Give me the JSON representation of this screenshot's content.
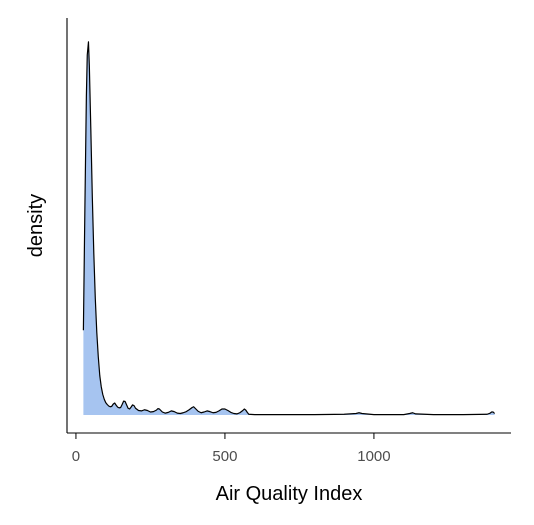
{
  "chart_data": {
    "type": "area",
    "title": "",
    "xlabel": "Air Quality Index",
    "ylabel": "density",
    "xlim": [
      -30,
      1460
    ],
    "ylim": [
      0,
      1
    ],
    "x_ticks": [
      0,
      500,
      1000
    ],
    "y_ticks_shown": false,
    "fill_color": "#a6c4f0",
    "line_color": "#000000",
    "grid": false,
    "legend": "none",
    "series": [
      {
        "x": [
          25,
          30,
          35,
          38,
          42,
          45,
          50,
          55,
          60,
          65,
          70,
          75,
          80,
          85,
          90,
          95,
          100,
          105,
          110,
          115,
          120,
          125,
          130,
          135,
          140,
          145,
          150,
          155,
          160,
          165,
          170,
          175,
          180,
          185,
          190,
          195,
          200,
          210,
          220,
          230,
          240,
          250,
          260,
          270,
          275,
          280,
          285,
          290,
          300,
          310,
          320,
          330,
          340,
          350,
          360,
          370,
          380,
          390,
          395,
          400,
          410,
          420,
          430,
          440,
          450,
          460,
          470,
          480,
          490,
          500,
          510,
          520,
          530,
          540,
          550,
          560,
          565,
          570,
          575,
          580,
          600,
          700,
          800,
          900,
          940,
          950,
          960,
          1000,
          1100,
          1120,
          1130,
          1140,
          1200,
          1300,
          1380,
          1390,
          1395,
          1400,
          1405
        ],
        "y": [
          0.226,
          0.55,
          0.85,
          0.96,
          0.995,
          0.93,
          0.76,
          0.58,
          0.43,
          0.31,
          0.22,
          0.155,
          0.105,
          0.075,
          0.055,
          0.042,
          0.033,
          0.028,
          0.024,
          0.022,
          0.023,
          0.029,
          0.032,
          0.026,
          0.021,
          0.019,
          0.02,
          0.028,
          0.037,
          0.036,
          0.027,
          0.018,
          0.016,
          0.021,
          0.027,
          0.025,
          0.018,
          0.012,
          0.011,
          0.014,
          0.012,
          0.008,
          0.009,
          0.013,
          0.017,
          0.016,
          0.012,
          0.008,
          0.005,
          0.007,
          0.011,
          0.009,
          0.005,
          0.004,
          0.006,
          0.009,
          0.014,
          0.02,
          0.022,
          0.018,
          0.01,
          0.006,
          0.008,
          0.011,
          0.009,
          0.006,
          0.007,
          0.011,
          0.016,
          0.016,
          0.012,
          0.007,
          0.004,
          0.003,
          0.006,
          0.012,
          0.016,
          0.013,
          0.007,
          0.002,
          0.001,
          0.001,
          0.001,
          0.002,
          0.004,
          0.006,
          0.004,
          0.001,
          0.001,
          0.004,
          0.006,
          0.003,
          0.001,
          0.001,
          0.002,
          0.005,
          0.008,
          0.008,
          0.004
        ]
      }
    ]
  }
}
